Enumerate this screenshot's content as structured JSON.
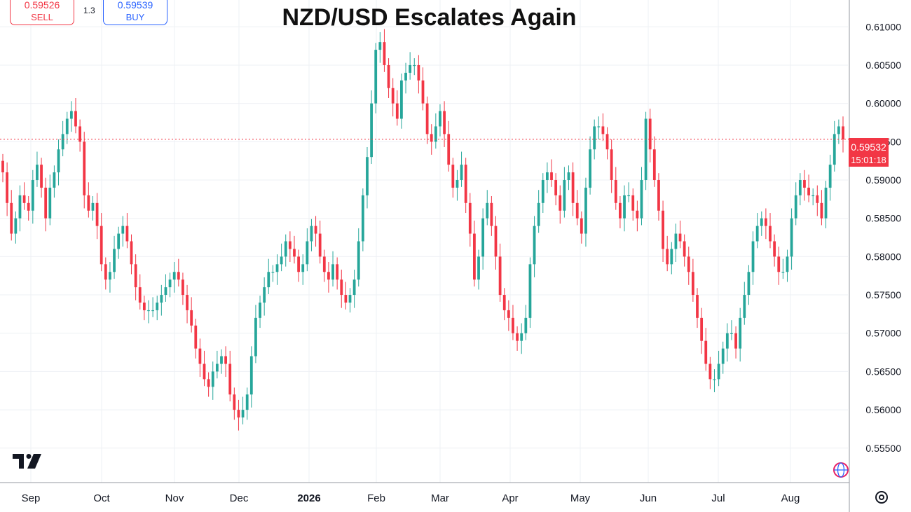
{
  "title": "NZD/USD Escalates Again",
  "trade": {
    "sell_price": "0.59526",
    "sell_label": "SELL",
    "spread": "1.3",
    "buy_price": "0.59539",
    "buy_label": "BUY"
  },
  "current": {
    "price": "0.59532",
    "countdown": "15:01:18"
  },
  "icons": {
    "logo": "tradingview-logo-icon",
    "settings": "settings-gear-icon",
    "globe": "globe-icon"
  },
  "colors": {
    "up": "#26a69a",
    "down": "#f23645",
    "grid": "#eef0f4",
    "last_price_line": "#f23645"
  },
  "chart_data": {
    "type": "candlestick",
    "title": "NZD/USD Escalates Again",
    "ylim": [
      0.5505,
      0.6135
    ],
    "y_ticks": [
      "0.61000",
      "0.60500",
      "0.60000",
      "0.59500",
      "0.59000",
      "0.58500",
      "0.58000",
      "0.57500",
      "0.57000",
      "0.56500",
      "0.56000",
      "0.55500"
    ],
    "x_ticks": [
      "Sep",
      "Oct",
      "Nov",
      "Dec",
      "2026",
      "Feb",
      "Mar",
      "Apr",
      "May",
      "Jun",
      "Jul",
      "Aug"
    ],
    "y_axis_side": "right",
    "grid": true,
    "last_price": 0.59532,
    "close_series": [
      0.591,
      0.587,
      0.583,
      0.585,
      0.588,
      0.587,
      0.586,
      0.59,
      0.592,
      0.589,
      0.585,
      0.589,
      0.591,
      0.594,
      0.596,
      0.598,
      0.599,
      0.597,
      0.595,
      0.588,
      0.586,
      0.587,
      0.584,
      0.579,
      0.577,
      0.578,
      0.581,
      0.583,
      0.584,
      0.582,
      0.579,
      0.576,
      0.574,
      0.573,
      0.573,
      0.573,
      0.574,
      0.575,
      0.576,
      0.577,
      0.578,
      0.577,
      0.575,
      0.573,
      0.571,
      0.568,
      0.566,
      0.564,
      0.563,
      0.565,
      0.566,
      0.567,
      0.566,
      0.562,
      0.56,
      0.559,
      0.56,
      0.562,
      0.567,
      0.572,
      0.574,
      0.576,
      0.578,
      0.578,
      0.579,
      0.58,
      0.582,
      0.581,
      0.58,
      0.578,
      0.579,
      0.582,
      0.584,
      0.583,
      0.58,
      0.578,
      0.577,
      0.579,
      0.577,
      0.575,
      0.574,
      0.575,
      0.577,
      0.582,
      0.588,
      0.593,
      0.6,
      0.607,
      0.608,
      0.605,
      0.602,
      0.6,
      0.598,
      0.603,
      0.604,
      0.605,
      0.605,
      0.603,
      0.6,
      0.596,
      0.595,
      0.597,
      0.599,
      0.596,
      0.592,
      0.589,
      0.59,
      0.592,
      0.587,
      0.583,
      0.577,
      0.58,
      0.585,
      0.587,
      0.584,
      0.58,
      0.575,
      0.573,
      0.572,
      0.57,
      0.569,
      0.57,
      0.572,
      0.579,
      0.584,
      0.587,
      0.59,
      0.591,
      0.59,
      0.588,
      0.586,
      0.59,
      0.591,
      0.587,
      0.585,
      0.583,
      0.589,
      0.594,
      0.597,
      0.597,
      0.596,
      0.594,
      0.59,
      0.587,
      0.585,
      0.588,
      0.588,
      0.586,
      0.585,
      0.59,
      0.598,
      0.594,
      0.59,
      0.586,
      0.581,
      0.579,
      0.581,
      0.583,
      0.582,
      0.58,
      0.578,
      0.575,
      0.572,
      0.569,
      0.566,
      0.564,
      0.564,
      0.566,
      0.568,
      0.57,
      0.57,
      0.568,
      0.572,
      0.575,
      0.578,
      0.582,
      0.584,
      0.585,
      0.584,
      0.582,
      0.58,
      0.578,
      0.578,
      0.58,
      0.585,
      0.588,
      0.59,
      0.589,
      0.588,
      0.588,
      0.587,
      0.585,
      0.589,
      0.592,
      0.596,
      0.597,
      0.5953
    ]
  }
}
